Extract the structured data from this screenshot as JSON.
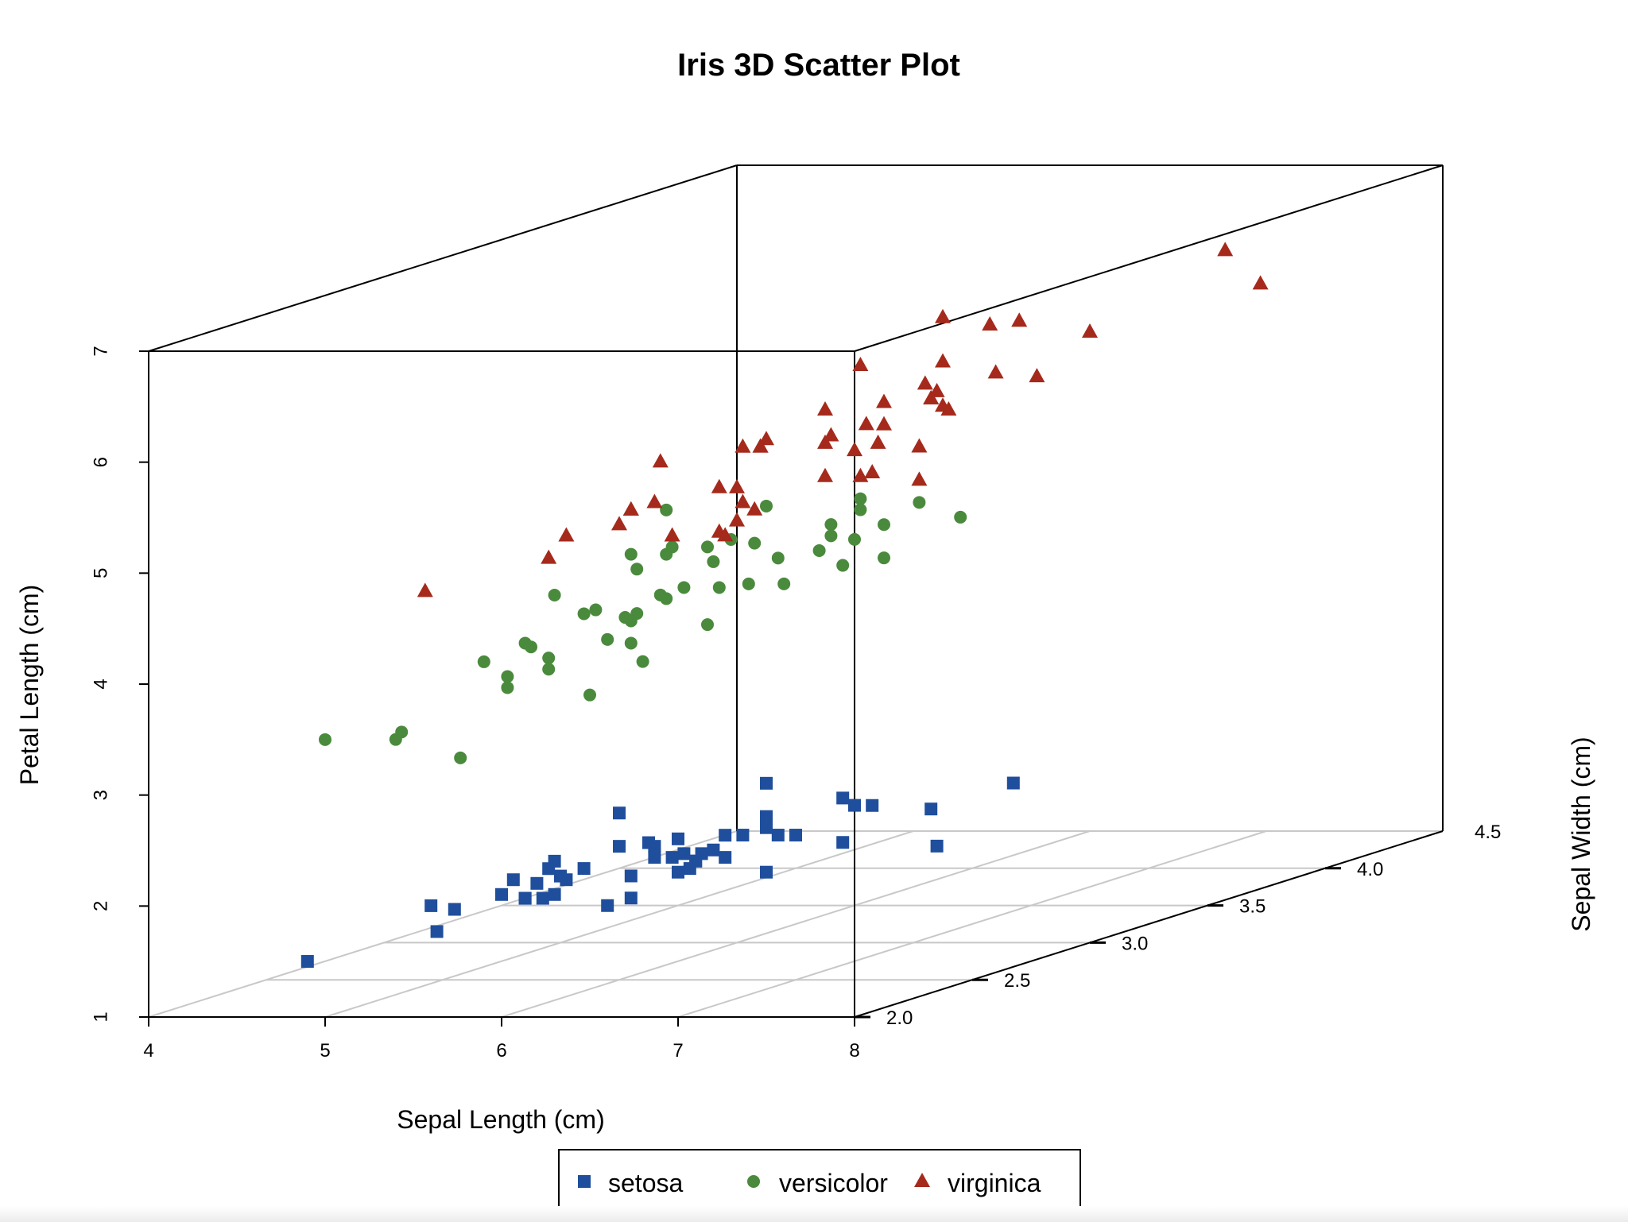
{
  "chart_data": {
    "type": "scatter",
    "title": "Iris 3D Scatter Plot",
    "xlabel": "Sepal Length (cm)",
    "ylabel": "Sepal Width (cm)",
    "zlabel": "Petal Length (cm)",
    "xlim": [
      4,
      8
    ],
    "ylim": [
      2.0,
      4.5
    ],
    "zlim": [
      1,
      7
    ],
    "x_ticks": [
      "4",
      "5",
      "6",
      "7",
      "8"
    ],
    "y_ticks": [
      "2.0",
      "2.5",
      "3.0",
      "3.5",
      "4.0",
      "4.5"
    ],
    "z_ticks": [
      "1",
      "2",
      "3",
      "4",
      "5",
      "6",
      "7"
    ],
    "grid": true,
    "legend_position": "bottom",
    "series": [
      {
        "name": "setosa",
        "marker": "square",
        "color": "#1f4e9c",
        "points": [
          [
            4.3,
            3.0,
            1.1
          ],
          [
            4.4,
            2.9,
            1.4
          ],
          [
            4.4,
            3.0,
            1.3
          ],
          [
            4.4,
            3.2,
            1.3
          ],
          [
            4.5,
            2.3,
            1.3
          ],
          [
            4.6,
            3.1,
            1.5
          ],
          [
            4.6,
            3.4,
            1.4
          ],
          [
            4.6,
            3.6,
            1.0
          ],
          [
            4.6,
            3.2,
            1.4
          ],
          [
            4.7,
            3.2,
            1.3
          ],
          [
            4.7,
            3.2,
            1.6
          ],
          [
            4.8,
            3.4,
            1.6
          ],
          [
            4.8,
            3.0,
            1.4
          ],
          [
            4.8,
            3.4,
            1.9
          ],
          [
            4.8,
            3.1,
            1.6
          ],
          [
            4.8,
            3.0,
            1.4
          ],
          [
            4.9,
            3.0,
            1.4
          ],
          [
            4.9,
            3.1,
            1.5
          ],
          [
            4.9,
            3.6,
            1.4
          ],
          [
            5.0,
            3.6,
            1.4
          ],
          [
            5.0,
            3.4,
            1.5
          ],
          [
            5.0,
            3.0,
            1.6
          ],
          [
            5.0,
            3.4,
            1.6
          ],
          [
            5.0,
            3.2,
            1.2
          ],
          [
            5.0,
            3.5,
            1.3
          ],
          [
            5.0,
            3.5,
            1.6
          ],
          [
            5.0,
            3.3,
            1.4
          ],
          [
            5.1,
            3.5,
            1.4
          ],
          [
            5.1,
            3.5,
            1.4
          ],
          [
            5.1,
            3.8,
            1.5
          ],
          [
            5.1,
            3.7,
            1.5
          ],
          [
            5.1,
            3.3,
            1.7
          ],
          [
            5.1,
            3.4,
            1.5
          ],
          [
            5.1,
            3.8,
            1.9
          ],
          [
            5.1,
            3.8,
            1.6
          ],
          [
            5.2,
            3.5,
            1.5
          ],
          [
            5.2,
            3.4,
            1.4
          ],
          [
            5.2,
            4.1,
            1.5
          ],
          [
            5.3,
            3.7,
            1.5
          ],
          [
            5.4,
            3.9,
            1.7
          ],
          [
            5.4,
            3.7,
            1.5
          ],
          [
            5.4,
            3.9,
            1.3
          ],
          [
            5.4,
            3.4,
            1.7
          ],
          [
            5.4,
            3.4,
            1.5
          ],
          [
            5.5,
            4.2,
            1.4
          ],
          [
            5.5,
            3.5,
            1.3
          ],
          [
            5.7,
            4.4,
            1.5
          ],
          [
            5.7,
            3.8,
            1.7
          ],
          [
            5.8,
            4.0,
            1.2
          ]
        ]
      },
      {
        "name": "versicolor",
        "marker": "circle",
        "color": "#4a8a3c",
        "points": [
          [
            4.9,
            2.4,
            3.3
          ],
          [
            5.0,
            2.0,
            3.5
          ],
          [
            5.0,
            2.3,
            3.3
          ],
          [
            5.1,
            2.5,
            3.0
          ],
          [
            5.2,
            2.7,
            3.9
          ],
          [
            5.4,
            3.0,
            4.5
          ],
          [
            5.5,
            2.3,
            4.0
          ],
          [
            5.5,
            2.4,
            3.8
          ],
          [
            5.5,
            2.4,
            3.7
          ],
          [
            5.5,
            2.5,
            4.0
          ],
          [
            5.5,
            2.6,
            4.4
          ],
          [
            5.6,
            2.9,
            3.6
          ],
          [
            5.6,
            3.0,
            4.5
          ],
          [
            5.6,
            2.5,
            3.9
          ],
          [
            5.6,
            3.0,
            4.1
          ],
          [
            5.6,
            2.7,
            4.2
          ],
          [
            5.7,
            2.8,
            4.5
          ],
          [
            5.7,
            2.6,
            3.5
          ],
          [
            5.7,
            3.0,
            4.2
          ],
          [
            5.7,
            2.9,
            4.2
          ],
          [
            5.7,
            2.8,
            4.1
          ],
          [
            5.8,
            2.7,
            4.1
          ],
          [
            5.8,
            2.7,
            3.9
          ],
          [
            5.8,
            2.6,
            4.0
          ],
          [
            5.9,
            3.0,
            4.2
          ],
          [
            5.9,
            3.2,
            4.8
          ],
          [
            6.0,
            2.2,
            4.0
          ],
          [
            6.0,
            2.9,
            4.5
          ],
          [
            6.0,
            2.7,
            5.1
          ],
          [
            6.0,
            3.4,
            4.5
          ],
          [
            6.1,
            2.9,
            4.7
          ],
          [
            6.1,
            2.8,
            4.0
          ],
          [
            6.1,
            2.8,
            4.7
          ],
          [
            6.1,
            3.0,
            4.6
          ],
          [
            6.2,
            2.2,
            4.5
          ],
          [
            6.2,
            2.9,
            4.3
          ],
          [
            6.3,
            3.3,
            4.7
          ],
          [
            6.3,
            2.5,
            4.9
          ],
          [
            6.3,
            2.3,
            4.4
          ],
          [
            6.4,
            3.2,
            4.5
          ],
          [
            6.4,
            2.9,
            4.3
          ],
          [
            6.5,
            2.8,
            4.6
          ],
          [
            6.6,
            2.9,
            4.6
          ],
          [
            6.6,
            3.0,
            4.4
          ],
          [
            6.7,
            3.1,
            4.4
          ],
          [
            6.7,
            3.0,
            5.0
          ],
          [
            6.7,
            3.1,
            4.7
          ],
          [
            6.8,
            2.8,
            4.8
          ],
          [
            6.9,
            3.1,
            4.9
          ],
          [
            7.0,
            3.2,
            4.7
          ]
        ]
      },
      {
        "name": "virginica",
        "marker": "triangle",
        "color": "#a52a1c",
        "points": [
          [
            4.9,
            2.5,
            4.5
          ],
          [
            5.6,
            2.8,
            4.9
          ],
          [
            5.7,
            2.5,
            5.0
          ],
          [
            5.8,
            2.7,
            5.1
          ],
          [
            5.8,
            2.8,
            5.1
          ],
          [
            5.8,
            2.7,
            5.1
          ],
          [
            5.9,
            3.0,
            5.1
          ],
          [
            6.0,
            2.2,
            5.0
          ],
          [
            6.0,
            3.0,
            4.8
          ],
          [
            6.1,
            3.0,
            4.9
          ],
          [
            6.1,
            2.6,
            5.6
          ],
          [
            6.2,
            2.8,
            4.8
          ],
          [
            6.2,
            3.4,
            5.4
          ],
          [
            6.3,
            3.3,
            6.0
          ],
          [
            6.3,
            2.9,
            5.6
          ],
          [
            6.3,
            2.5,
            5.0
          ],
          [
            6.3,
            2.7,
            4.9
          ],
          [
            6.3,
            2.8,
            5.1
          ],
          [
            6.3,
            3.4,
            5.6
          ],
          [
            6.4,
            2.7,
            5.3
          ],
          [
            6.4,
            3.2,
            5.3
          ],
          [
            6.4,
            2.8,
            5.6
          ],
          [
            6.4,
            2.8,
            5.6
          ],
          [
            6.4,
            3.1,
            5.5
          ],
          [
            6.5,
            3.0,
            5.8
          ],
          [
            6.5,
            3.2,
            5.1
          ],
          [
            6.5,
            3.0,
            5.5
          ],
          [
            6.5,
            3.0,
            5.2
          ],
          [
            6.7,
            2.5,
            5.8
          ],
          [
            6.7,
            3.3,
            5.7
          ],
          [
            6.7,
            3.1,
            5.6
          ],
          [
            6.7,
            3.0,
            5.2
          ],
          [
            6.8,
            3.0,
            5.5
          ],
          [
            6.8,
            3.2,
            5.9
          ],
          [
            6.9,
            3.2,
            5.7
          ],
          [
            6.9,
            3.1,
            5.4
          ],
          [
            6.9,
            3.1,
            5.1
          ],
          [
            7.1,
            3.0,
            5.9
          ],
          [
            7.2,
            3.6,
            6.1
          ],
          [
            7.2,
            3.2,
            6.0
          ],
          [
            7.2,
            3.0,
            5.8
          ],
          [
            7.3,
            2.9,
            6.3
          ],
          [
            7.4,
            2.8,
            6.1
          ],
          [
            7.6,
            3.0,
            6.6
          ],
          [
            7.7,
            3.8,
            6.7
          ],
          [
            7.7,
            2.6,
            6.9
          ],
          [
            7.7,
            2.8,
            6.7
          ],
          [
            7.7,
            3.0,
            6.1
          ],
          [
            7.9,
            3.8,
            6.4
          ]
        ]
      }
    ]
  }
}
